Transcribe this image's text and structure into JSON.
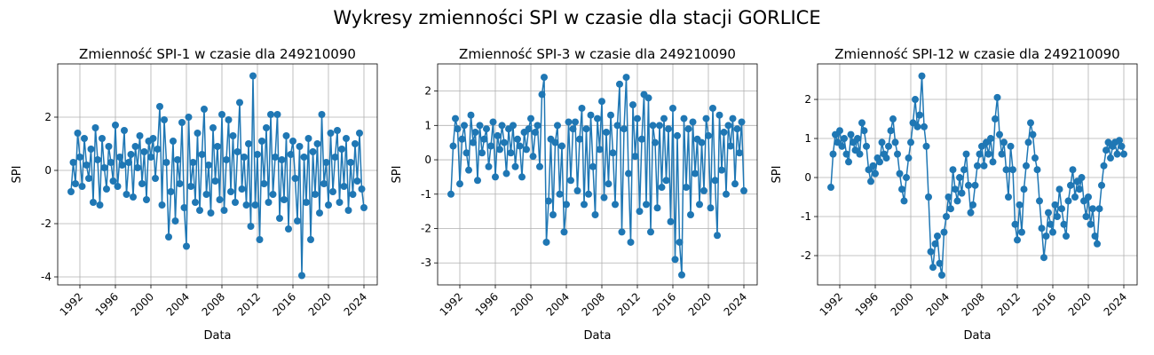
{
  "title": "Wykresy zmienności SPI w czasie dla stacji GORLICE",
  "chart_data": [
    {
      "type": "line",
      "title": "Zmienność SPI-1 w czasie dla 249210090",
      "x_label": "Data",
      "y_label": "SPI",
      "color": "#1f77b4",
      "grid": true,
      "xlim": [
        1989.5,
        2025.5
      ],
      "xticks": [
        1992,
        1996,
        2000,
        2004,
        2008,
        2012,
        2016,
        2020,
        2024
      ],
      "ylim": [
        -4.3,
        4.0
      ],
      "yticks": [
        -4,
        -2,
        0,
        2
      ],
      "x": [
        1991,
        1991.25,
        1991.5,
        1991.75,
        1992,
        1992.25,
        1992.5,
        1992.75,
        1993,
        1993.25,
        1993.5,
        1993.75,
        1994,
        1994.25,
        1994.5,
        1994.75,
        1995,
        1995.25,
        1995.5,
        1995.75,
        1996,
        1996.25,
        1996.5,
        1996.75,
        1997,
        1997.25,
        1997.5,
        1997.75,
        1998,
        1998.25,
        1998.5,
        1998.75,
        1999,
        1999.25,
        1999.5,
        1999.75,
        2000,
        2000.25,
        2000.5,
        2000.75,
        2001,
        2001.25,
        2001.5,
        2001.75,
        2002,
        2002.25,
        2002.5,
        2002.75,
        2003,
        2003.25,
        2003.5,
        2003.75,
        2004,
        2004.25,
        2004.5,
        2004.75,
        2005,
        2005.25,
        2005.5,
        2005.75,
        2006,
        2006.25,
        2006.5,
        2006.75,
        2007,
        2007.25,
        2007.5,
        2007.75,
        2008,
        2008.25,
        2008.5,
        2008.75,
        2009,
        2009.25,
        2009.5,
        2009.75,
        2010,
        2010.25,
        2010.5,
        2010.75,
        2011,
        2011.25,
        2011.5,
        2011.75,
        2012,
        2012.25,
        2012.5,
        2012.75,
        2013,
        2013.25,
        2013.5,
        2013.75,
        2014,
        2014.25,
        2014.5,
        2014.75,
        2015,
        2015.25,
        2015.5,
        2015.75,
        2016,
        2016.25,
        2016.5,
        2016.75,
        2017,
        2017.25,
        2017.5,
        2017.75,
        2018,
        2018.25,
        2018.5,
        2018.75,
        2019,
        2019.25,
        2019.5,
        2019.75,
        2020,
        2020.25,
        2020.5,
        2020.75,
        2021,
        2021.25,
        2021.5,
        2021.75,
        2022,
        2022.25,
        2022.5,
        2022.75,
        2023,
        2023.25,
        2023.5,
        2023.75,
        2024
      ],
      "values": [
        -0.8,
        0.3,
        -0.5,
        1.4,
        0.5,
        -0.6,
        1.2,
        0.2,
        -0.3,
        0.8,
        -1.2,
        1.6,
        0.4,
        -1.3,
        1.2,
        0.1,
        -0.7,
        0.9,
        0.3,
        -0.4,
        1.7,
        -0.6,
        0.5,
        0.2,
        1.5,
        -0.9,
        0.3,
        0.6,
        -1.0,
        0.9,
        0.1,
        1.3,
        -0.5,
        0.7,
        -1.1,
        1.1,
        0.5,
        1.2,
        -0.3,
        0.8,
        2.4,
        -1.3,
        1.9,
        0.3,
        -2.5,
        -0.8,
        1.1,
        -1.9,
        0.4,
        -0.5,
        1.8,
        -1.4,
        -2.85,
        2.0,
        -0.6,
        0.3,
        -1.2,
        1.4,
        -1.5,
        0.6,
        2.3,
        -0.9,
        0.2,
        -1.6,
        1.6,
        -0.4,
        0.9,
        -1.1,
        2.1,
        -1.5,
        0.4,
        1.9,
        -0.8,
        1.3,
        -1.2,
        0.7,
        2.55,
        -0.7,
        0.5,
        -1.3,
        1.0,
        -2.1,
        3.55,
        -1.3,
        0.6,
        -2.6,
        1.1,
        -0.5,
        1.6,
        -1.2,
        2.1,
        -0.9,
        0.5,
        2.1,
        -1.8,
        0.4,
        -1.1,
        1.3,
        -2.2,
        0.6,
        1.1,
        -0.3,
        -1.9,
        0.9,
        -3.95,
        0.5,
        -1.2,
        1.2,
        -2.6,
        0.7,
        -0.9,
        1.0,
        -1.6,
        2.1,
        -0.5,
        0.3,
        -1.3,
        1.4,
        -0.8,
        0.5,
        1.5,
        -1.2,
        0.8,
        -0.6,
        1.2,
        -1.5,
        0.3,
        -0.9,
        1.0,
        -0.4,
        1.4,
        -0.7,
        -1.4
      ]
    },
    {
      "type": "line",
      "title": "Zmienność SPI-3 w czasie dla 249210090",
      "x_label": "Data",
      "y_label": "SPI",
      "color": "#1f77b4",
      "grid": true,
      "xlim": [
        1989.5,
        2025.5
      ],
      "xticks": [
        1992,
        1996,
        2000,
        2004,
        2008,
        2012,
        2016,
        2020,
        2024
      ],
      "ylim": [
        -3.64,
        2.79
      ],
      "yticks": [
        -3,
        -2,
        -1,
        0,
        1,
        2
      ],
      "x": [
        1991,
        1991.25,
        1991.5,
        1991.75,
        1992,
        1992.25,
        1992.5,
        1992.75,
        1993,
        1993.25,
        1993.5,
        1993.75,
        1994,
        1994.25,
        1994.5,
        1994.75,
        1995,
        1995.25,
        1995.5,
        1995.75,
        1996,
        1996.25,
        1996.5,
        1996.75,
        1997,
        1997.25,
        1997.5,
        1997.75,
        1998,
        1998.25,
        1998.5,
        1998.75,
        1999,
        1999.25,
        1999.5,
        1999.75,
        2000,
        2000.25,
        2000.5,
        2000.75,
        2001,
        2001.25,
        2001.5,
        2001.75,
        2002,
        2002.25,
        2002.5,
        2002.75,
        2003,
        2003.25,
        2003.5,
        2003.75,
        2004,
        2004.25,
        2004.5,
        2004.75,
        2005,
        2005.25,
        2005.5,
        2005.75,
        2006,
        2006.25,
        2006.5,
        2006.75,
        2007,
        2007.25,
        2007.5,
        2007.75,
        2008,
        2008.25,
        2008.5,
        2008.75,
        2009,
        2009.25,
        2009.5,
        2009.75,
        2010,
        2010.25,
        2010.5,
        2010.75,
        2011,
        2011.25,
        2011.5,
        2011.75,
        2012,
        2012.25,
        2012.5,
        2012.75,
        2013,
        2013.25,
        2013.5,
        2013.75,
        2014,
        2014.25,
        2014.5,
        2014.75,
        2015,
        2015.25,
        2015.5,
        2015.75,
        2016,
        2016.25,
        2016.5,
        2016.75,
        2017,
        2017.25,
        2017.5,
        2017.75,
        2018,
        2018.25,
        2018.5,
        2018.75,
        2019,
        2019.25,
        2019.5,
        2019.75,
        2020,
        2020.25,
        2020.5,
        2020.75,
        2021,
        2021.25,
        2021.5,
        2021.75,
        2022,
        2022.25,
        2022.5,
        2022.75,
        2023,
        2023.25,
        2023.5,
        2023.75,
        2024
      ],
      "values": [
        -1.0,
        0.4,
        1.2,
        0.9,
        -0.7,
        0.6,
        1.0,
        0.2,
        -0.3,
        1.3,
        0.5,
        0.8,
        -0.6,
        1.0,
        0.2,
        0.6,
        0.9,
        -0.2,
        0.4,
        1.1,
        -0.5,
        0.7,
        0.3,
        1.0,
        0.5,
        -0.4,
        0.9,
        0.2,
        1.0,
        -0.2,
        0.6,
        0.4,
        -0.5,
        0.8,
        0.3,
        0.9,
        1.2,
        0.1,
        0.8,
        1.0,
        -0.2,
        1.9,
        2.4,
        -2.4,
        -1.2,
        0.6,
        -1.6,
        0.5,
        1.0,
        -1.0,
        0.4,
        -2.1,
        -1.3,
        1.1,
        -0.6,
        0.9,
        1.1,
        -0.9,
        0.6,
        1.5,
        -1.3,
        0.9,
        -1.0,
        1.3,
        -0.2,
        -1.6,
        1.2,
        0.3,
        1.7,
        -1.1,
        0.8,
        -0.7,
        1.3,
        0.2,
        -1.3,
        1.0,
        2.2,
        -2.1,
        0.9,
        2.4,
        -0.4,
        -2.4,
        1.6,
        0.1,
        1.2,
        -1.5,
        0.6,
        1.9,
        -1.3,
        1.8,
        -2.1,
        1.0,
        0.5,
        -1.4,
        1.0,
        -0.8,
        1.2,
        -0.6,
        0.9,
        -1.8,
        1.5,
        -2.9,
        0.7,
        -2.4,
        -3.35,
        1.2,
        -0.8,
        0.9,
        -1.6,
        1.1,
        -0.4,
        0.6,
        -1.3,
        0.5,
        -0.9,
        1.2,
        0.7,
        -1.4,
        1.5,
        -0.6,
        -2.2,
        1.3,
        -0.3,
        0.8,
        -1.0,
        1.0,
        0.4,
        1.2,
        -0.7,
        0.9,
        0.2,
        1.1,
        -0.9
      ]
    },
    {
      "type": "line",
      "title": "Zmienność SPI-12 w czasie dla 249210090",
      "x_label": "Data",
      "y_label": "SPI",
      "color": "#1f77b4",
      "grid": true,
      "xlim": [
        1989.5,
        2025.5
      ],
      "xticks": [
        1992,
        1996,
        2000,
        2004,
        2008,
        2012,
        2016,
        2020,
        2024
      ],
      "ylim": [
        -2.75,
        2.91
      ],
      "yticks": [
        -2,
        -1,
        0,
        1,
        2
      ],
      "x": [
        1991,
        1991.25,
        1991.5,
        1991.75,
        1992,
        1992.25,
        1992.5,
        1992.75,
        1993,
        1993.25,
        1993.5,
        1993.75,
        1994,
        1994.25,
        1994.5,
        1994.75,
        1995,
        1995.25,
        1995.5,
        1995.75,
        1996,
        1996.25,
        1996.5,
        1996.75,
        1997,
        1997.25,
        1997.5,
        1997.75,
        1998,
        1998.25,
        1998.5,
        1998.75,
        1999,
        1999.25,
        1999.5,
        1999.75,
        2000,
        2000.25,
        2000.5,
        2000.75,
        2001,
        2001.25,
        2001.5,
        2001.75,
        2002,
        2002.25,
        2002.5,
        2002.75,
        2003,
        2003.25,
        2003.5,
        2003.75,
        2004,
        2004.25,
        2004.5,
        2004.75,
        2005,
        2005.25,
        2005.5,
        2005.75,
        2006,
        2006.25,
        2006.5,
        2006.75,
        2007,
        2007.25,
        2007.5,
        2007.75,
        2008,
        2008.25,
        2008.5,
        2008.75,
        2009,
        2009.25,
        2009.5,
        2009.75,
        2010,
        2010.25,
        2010.5,
        2010.75,
        2011,
        2011.25,
        2011.5,
        2011.75,
        2012,
        2012.25,
        2012.5,
        2012.75,
        2013,
        2013.25,
        2013.5,
        2013.75,
        2014,
        2014.25,
        2014.5,
        2014.75,
        2015,
        2015.25,
        2015.5,
        2015.75,
        2016,
        2016.25,
        2016.5,
        2016.75,
        2017,
        2017.25,
        2017.5,
        2017.75,
        2018,
        2018.25,
        2018.5,
        2018.75,
        2019,
        2019.25,
        2019.5,
        2019.75,
        2020,
        2020.25,
        2020.5,
        2020.75,
        2021,
        2021.25,
        2021.5,
        2021.75,
        2022,
        2022.25,
        2022.5,
        2022.75,
        2023,
        2023.25,
        2023.5,
        2023.75,
        2024
      ],
      "values": [
        -0.25,
        0.6,
        1.1,
        0.9,
        1.2,
        0.8,
        1.0,
        0.6,
        0.4,
        1.1,
        0.9,
        0.7,
        1.0,
        0.6,
        1.4,
        1.2,
        0.8,
        0.2,
        -0.1,
        0.3,
        0.1,
        0.5,
        0.4,
        0.9,
        0.6,
        0.5,
        0.8,
        1.2,
        1.5,
        0.9,
        0.6,
        0.1,
        -0.3,
        -0.6,
        0.0,
        0.5,
        0.9,
        1.4,
        2.0,
        1.3,
        1.6,
        2.6,
        1.3,
        0.8,
        -0.5,
        -1.9,
        -2.3,
        -1.7,
        -1.5,
        -2.2,
        -2.5,
        -1.4,
        -1.0,
        -0.5,
        -0.8,
        0.2,
        -0.3,
        -0.6,
        0.0,
        -0.4,
        0.2,
        0.6,
        -0.2,
        -0.9,
        -0.7,
        -0.2,
        0.3,
        0.6,
        0.8,
        0.3,
        0.9,
        0.6,
        1.0,
        0.4,
        1.5,
        2.05,
        1.1,
        0.6,
        0.9,
        0.2,
        -0.5,
        0.8,
        0.2,
        -1.2,
        -1.6,
        -0.7,
        -1.4,
        -0.3,
        0.3,
        0.9,
        1.4,
        1.1,
        0.5,
        0.2,
        -0.6,
        -1.3,
        -2.05,
        -1.5,
        -0.9,
        -1.2,
        -1.4,
        -0.7,
        -1.0,
        -0.3,
        -0.8,
        -1.2,
        -1.5,
        -0.6,
        -0.2,
        0.2,
        -0.5,
        -0.1,
        -0.3,
        0.0,
        -0.6,
        -1.0,
        -0.5,
        -1.2,
        -0.8,
        -1.5,
        -1.7,
        -0.8,
        -0.2,
        0.3,
        0.7,
        0.9,
        0.5,
        0.8,
        0.9,
        0.6,
        0.95,
        0.8,
        0.6
      ]
    }
  ]
}
